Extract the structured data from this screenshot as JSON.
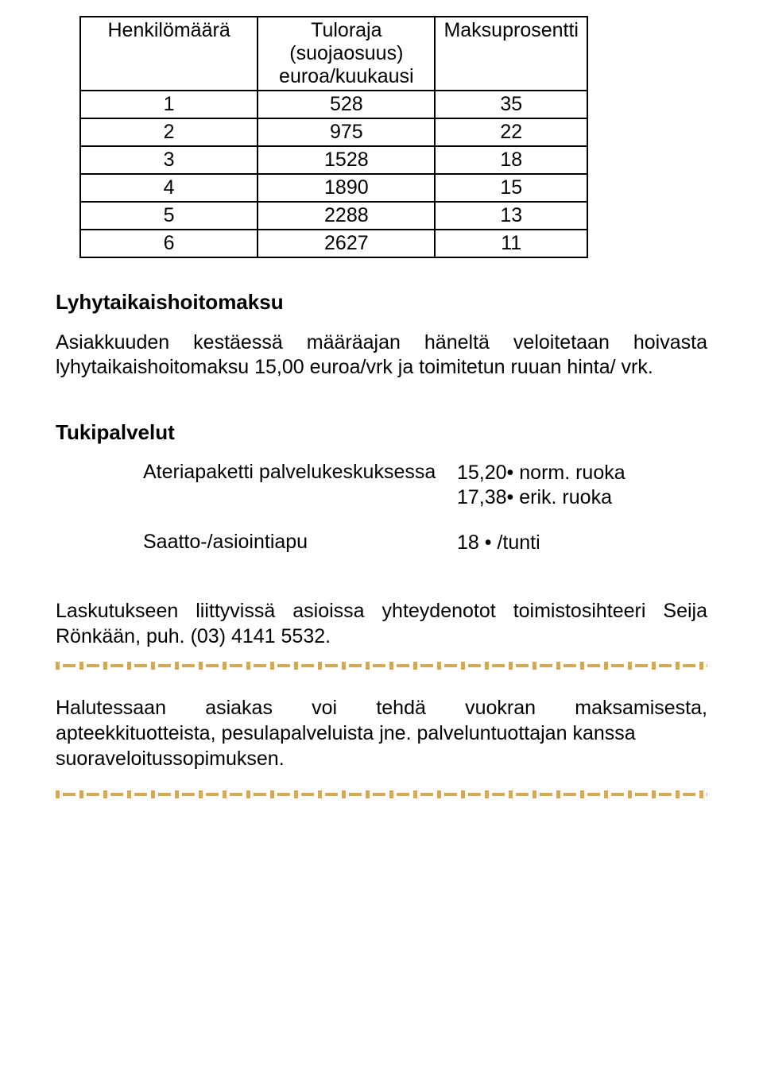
{
  "table": {
    "headers": [
      "Henkilömäärä",
      "Tuloraja (suojaosuus) euroa/kuukausi",
      "Maksuprosentti"
    ],
    "header_lines": [
      [
        "Henkilömäärä"
      ],
      [
        "Tuloraja",
        "(suojaosuus)",
        "euroa/kuukausi"
      ],
      [
        "Maksuprosentti"
      ]
    ],
    "rows": [
      [
        "1",
        "528",
        "35"
      ],
      [
        "2",
        "975",
        "22"
      ],
      [
        "3",
        "1528",
        "18"
      ],
      [
        "4",
        "1890",
        "15"
      ],
      [
        "5",
        "2288",
        "13"
      ],
      [
        "6",
        "2627",
        "11"
      ]
    ],
    "border_color": "#000000"
  },
  "section1": {
    "title": "Lyhytaikaishoitomaksu",
    "body": "Asiakkuuden kestäessä määräajan häneltä veloitetaan hoivasta lyhytaikaishoitomaksu 15,00 euroa/vrk ja toimitetun ruuan hinta/ vrk."
  },
  "section2": {
    "title": "Tukipalvelut",
    "items": [
      {
        "label": "Ateriapaketti palvelukeskuksessa",
        "value": "15,20• norm. ruoka\n17,38• erik. ruoka"
      },
      {
        "label": "Saatto-/asiointiapu",
        "value": "18 • /tunti"
      }
    ]
  },
  "section3": {
    "body": "Laskutukseen liittyvissä asioissa yhteydenotot toimistosihteeri Seija Rönkään, puh. (03) 4141 5532."
  },
  "section4": {
    "line1_words": [
      "Halutessaan",
      "asiakas",
      "voi",
      "tehdä",
      "vuokran",
      "maksamisesta,"
    ],
    "line2": "apteekkituotteista, pesulapalveluista jne. palveluntuottajan kanssa",
    "line3": "suoraveloitussopimuksen."
  },
  "divider": {
    "color": "#d5a94f",
    "bg": "#ffffff"
  },
  "typography": {
    "body_fontsize": 25,
    "heading_fontsize": 26,
    "text_color": "#000000"
  }
}
